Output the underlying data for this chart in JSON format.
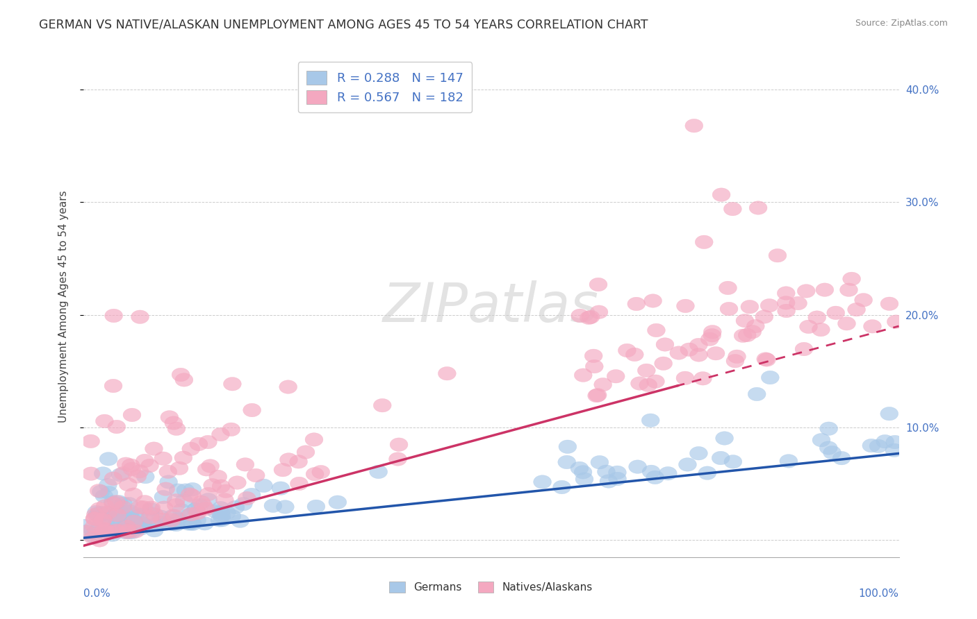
{
  "title": "GERMAN VS NATIVE/ALASKAN UNEMPLOYMENT AMONG AGES 45 TO 54 YEARS CORRELATION CHART",
  "source": "Source: ZipAtlas.com",
  "ylabel": "Unemployment Among Ages 45 to 54 years",
  "german_color": "#a8c8e8",
  "native_color": "#f4a8c0",
  "german_line_color": "#2255aa",
  "native_line_color": "#cc3366",
  "background_color": "#ffffff",
  "german_N": 147,
  "native_N": 182,
  "german_slope": 0.075,
  "german_intercept": 0.002,
  "native_slope": 0.195,
  "native_intercept": -0.005,
  "xmin": 0.0,
  "xmax": 1.0,
  "ymin": -0.015,
  "ymax": 0.43,
  "ytick_vals": [
    0.0,
    0.1,
    0.2,
    0.3,
    0.4
  ],
  "ytick_labels": [
    "",
    "10.0%",
    "20.0%",
    "30.0%",
    "40.0%"
  ],
  "title_fontsize": 12.5,
  "axis_label_fontsize": 11,
  "tick_fontsize": 11,
  "legend_fontsize": 13
}
